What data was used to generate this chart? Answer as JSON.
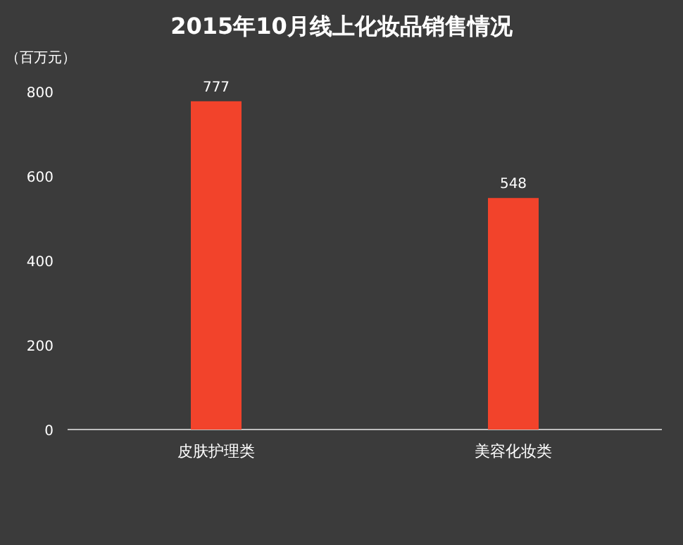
{
  "chart_data": {
    "type": "bar",
    "title": "2015年10月线上化妆品销售情况",
    "ylabel": "（百万元）",
    "categories": [
      "皮肤护理类",
      "美容化妆类"
    ],
    "values": [
      777,
      548
    ],
    "color": "#f2432b",
    "ylim": [
      0,
      800
    ],
    "yticks": [
      0,
      200,
      400,
      600,
      800
    ],
    "data_labels": true
  }
}
